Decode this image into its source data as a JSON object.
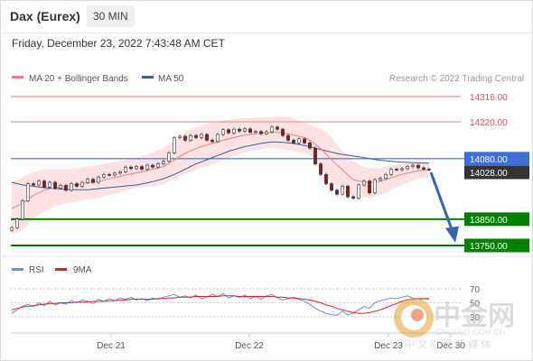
{
  "header": {
    "instrument": "Dax (Eurex)",
    "timeframe": "30 MIN",
    "datetime": "Friday, December 23, 2022 7:43:48 AM CET"
  },
  "legend": {
    "ma20": "MA 20 + Bollinger Bands",
    "ma50": "MA 50",
    "credit": "Research © 2022 Trading Central",
    "rsi": "RSI",
    "rsi_ma": "9MA"
  },
  "colors": {
    "ma20": "#f08080",
    "ma50": "#3560a0",
    "resistance": "#f08080",
    "pivot": "#3d6fd6",
    "support": "#008000",
    "current": "#333333",
    "rsi": "#6b8fd9",
    "rsi_ma": "#e02020",
    "bull": "#ffffff",
    "bear": "#8b1a1a",
    "arrow": "#3366aa"
  },
  "chart_data": [
    {
      "type": "candlestick",
      "title": "Dax (Eurex) 30 MIN",
      "x_ticks": [
        "Dec 21",
        "Dec 22",
        "Dec 23",
        "Dec 30"
      ],
      "ylim": [
        13720,
        14400
      ],
      "levels": [
        {
          "label": "14316.00",
          "value": 14316,
          "kind": "resistance"
        },
        {
          "label": "14220.00",
          "value": 14220,
          "kind": "resistance"
        },
        {
          "label": "14080.00",
          "value": 14080,
          "kind": "pivot"
        },
        {
          "label": "14028.00",
          "value": 14028,
          "kind": "current"
        },
        {
          "label": "13850.00",
          "value": 13850,
          "kind": "support"
        },
        {
          "label": "13750.00",
          "value": 13750,
          "kind": "support"
        }
      ],
      "close": [
        13818,
        13850,
        13920,
        13985,
        13980,
        13995,
        13972,
        13990,
        13968,
        13978,
        13960,
        13985,
        13975,
        13990,
        14002,
        13990,
        14010,
        14020,
        14018,
        14025,
        14030,
        14048,
        14042,
        14050,
        14040,
        14055,
        14048,
        14060,
        14070,
        14102,
        14160,
        14165,
        14150,
        14168,
        14160,
        14172,
        14150,
        14145,
        14172,
        14190,
        14178,
        14192,
        14185,
        14193,
        14180,
        14183,
        14175,
        14182,
        14200,
        14192,
        14168,
        14150,
        14140,
        14155,
        14140,
        14120,
        14060,
        14020,
        13985,
        13960,
        13945,
        13975,
        13935,
        13930,
        13980,
        13995,
        13950,
        14000,
        14005,
        14020,
        14040,
        14038,
        14042,
        14050,
        14055,
        14045,
        14040,
        14038
      ],
      "ma20": [
        13890,
        13900,
        13910,
        13925,
        13940,
        13950,
        13960,
        13965,
        13970,
        13972,
        13975,
        13978,
        13980,
        13985,
        13988,
        13990,
        13993,
        13998,
        14003,
        14008,
        14012,
        14018,
        14022,
        14026,
        14030,
        14035,
        14040,
        14045,
        14050,
        14062,
        14075,
        14088,
        14100,
        14110,
        14118,
        14126,
        14132,
        14138,
        14144,
        14150,
        14155,
        14160,
        14165,
        14170,
        14172,
        14175,
        14176,
        14178,
        14180,
        14180,
        14178,
        14175,
        14170,
        14165,
        14160,
        14150,
        14136,
        14118,
        14098,
        14076,
        14056,
        14038,
        14018,
        14000,
        13995,
        13992,
        13988,
        13990,
        13994,
        14000,
        14008,
        14014,
        14020,
        14025,
        14030,
        14034,
        14036,
        14038
      ],
      "bb_upper": [
        13990,
        14000,
        14010,
        14020,
        14028,
        14035,
        14040,
        14040,
        14040,
        14040,
        14040,
        14042,
        14045,
        14047,
        14050,
        14052,
        14056,
        14060,
        14064,
        14068,
        14072,
        14076,
        14080,
        14084,
        14090,
        14096,
        14104,
        14112,
        14120,
        14132,
        14150,
        14165,
        14180,
        14190,
        14198,
        14205,
        14212,
        14218,
        14222,
        14225,
        14228,
        14230,
        14232,
        14234,
        14235,
        14236,
        14236,
        14236,
        14238,
        14240,
        14240,
        14238,
        14232,
        14225,
        14218,
        14208,
        14200,
        14192,
        14180,
        14160,
        14135,
        14110,
        14090,
        14072,
        14060,
        14050,
        14045,
        14045,
        14046,
        14050,
        14055,
        14058,
        14060,
        14062,
        14064,
        14065,
        14066,
        14067
      ],
      "bb_lower": [
        13790,
        13800,
        13810,
        13830,
        13852,
        13865,
        13880,
        13890,
        13900,
        13904,
        13910,
        13914,
        13915,
        13923,
        13926,
        13928,
        13930,
        13936,
        13942,
        13948,
        13952,
        13960,
        13964,
        13968,
        13970,
        13974,
        13976,
        13978,
        13980,
        13992,
        14000,
        14011,
        14020,
        14030,
        14038,
        14047,
        14052,
        14058,
        14066,
        14075,
        14082,
        14090,
        14098,
        14106,
        14109,
        14114,
        14116,
        14120,
        14122,
        14120,
        14116,
        14112,
        14108,
        14105,
        14102,
        14092,
        14072,
        14044,
        14016,
        13992,
        13977,
        13966,
        13946,
        13928,
        13930,
        13934,
        13931,
        13935,
        13942,
        13950,
        13961,
        13970,
        13980,
        13988,
        13996,
        14003,
        14006,
        14009
      ],
      "ma50": [
        13990,
        13985,
        13980,
        13978,
        13975,
        13972,
        13970,
        13968,
        13966,
        13965,
        13963,
        13962,
        13962,
        13962,
        13962,
        13964,
        13966,
        13968,
        13970,
        13972,
        13974,
        13976,
        13978,
        13980,
        13984,
        13988,
        13993,
        13998,
        14004,
        14012,
        14020,
        14030,
        14040,
        14050,
        14060,
        14068,
        14076,
        14084,
        14092,
        14100,
        14108,
        14114,
        14120,
        14126,
        14130,
        14134,
        14138,
        14141,
        14143,
        14143,
        14142,
        14140,
        14138,
        14134,
        14130,
        14126,
        14120,
        14115,
        14110,
        14105,
        14100,
        14096,
        14093,
        14090,
        14087,
        14084,
        14080,
        14077,
        14074,
        14072,
        14070,
        14068,
        14067,
        14066,
        14065,
        14064,
        14063,
        14063
      ],
      "forecast_arrow": {
        "from": 14028,
        "to": 13768
      }
    },
    {
      "type": "line",
      "title": "RSI",
      "y_ticks": [
        70,
        50,
        30
      ],
      "ylim": [
        25,
        75
      ],
      "series": [
        {
          "name": "RSI",
          "values": [
            35,
            40,
            45,
            48,
            44,
            50,
            46,
            52,
            47,
            50,
            48,
            53,
            50,
            54,
            52,
            49,
            55,
            52,
            56,
            53,
            57,
            55,
            58,
            54,
            56,
            53,
            57,
            55,
            58,
            60,
            62,
            58,
            60,
            57,
            61,
            56,
            58,
            62,
            59,
            63,
            57,
            60,
            58,
            61,
            56,
            59,
            55,
            60,
            62,
            57,
            54,
            56,
            58,
            55,
            52,
            48,
            42,
            38,
            35,
            33,
            32,
            38,
            33,
            35,
            40,
            45,
            42,
            50,
            53,
            55,
            57,
            56,
            58,
            60,
            57,
            55,
            56,
            55
          ]
        },
        {
          "name": "9MA",
          "values": [
            40,
            42,
            44,
            45,
            46,
            47,
            48,
            49,
            49,
            50,
            50,
            50,
            51,
            51,
            51,
            52,
            52,
            52,
            53,
            53,
            54,
            54,
            55,
            55,
            55,
            55,
            55,
            56,
            56,
            57,
            57,
            58,
            58,
            58,
            59,
            59,
            59,
            59,
            59,
            60,
            60,
            60,
            59,
            59,
            59,
            59,
            59,
            59,
            59,
            58,
            58,
            57,
            57,
            56,
            55,
            54,
            52,
            50,
            47,
            45,
            42,
            40,
            38,
            36,
            35,
            35,
            36,
            38,
            40,
            43,
            46,
            49,
            52,
            54,
            55,
            56,
            56,
            56
          ]
        }
      ]
    }
  ],
  "watermark": {
    "cn": "中金网",
    "domain": "CNGOLD.COM.CN",
    "tagline": "中 文 财 经 新 媒 体"
  }
}
